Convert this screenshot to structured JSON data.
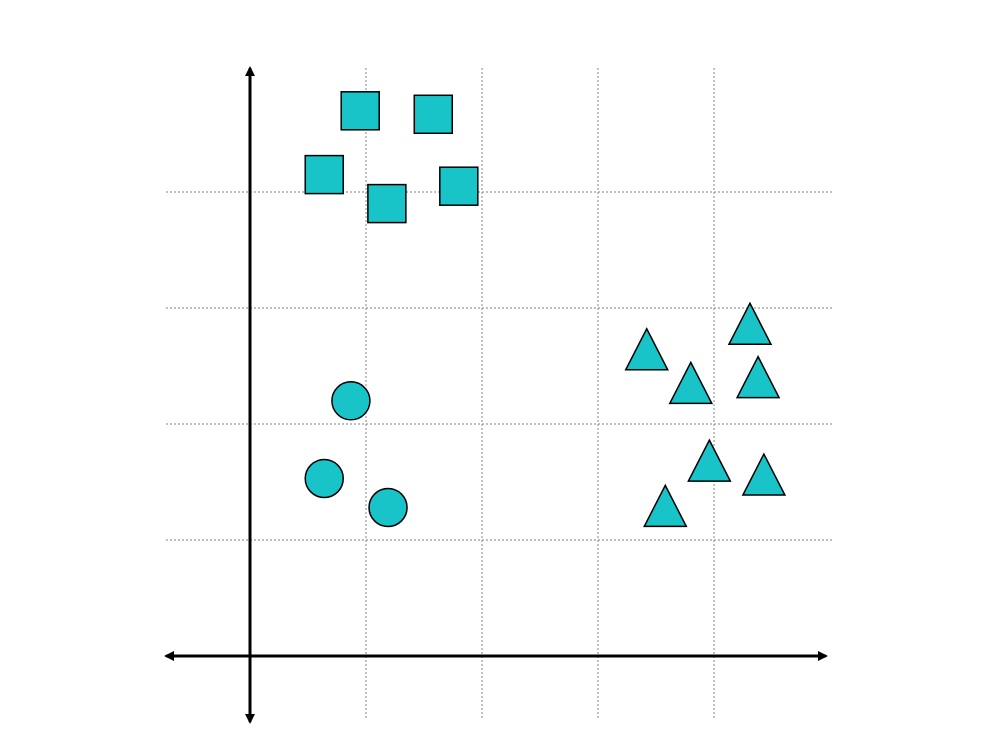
{
  "chart_data": {
    "type": "scatter",
    "title": "",
    "xlabel": "",
    "ylabel": "",
    "grid": true,
    "tick_labels": false,
    "legend": false,
    "xlim": [
      -0.72,
      5.05
    ],
    "ylim": [
      -0.52,
      5.05
    ],
    "fill_color": "#19C4C8",
    "stroke_color": "#000000",
    "grid_color": "#999999",
    "series": [
      {
        "marker": "square",
        "points": [
          {
            "x": 0.95,
            "y": 4.7
          },
          {
            "x": 1.58,
            "y": 4.67
          },
          {
            "x": 0.64,
            "y": 4.15
          },
          {
            "x": 1.18,
            "y": 3.9
          },
          {
            "x": 1.8,
            "y": 4.05
          }
        ]
      },
      {
        "marker": "circle",
        "points": [
          {
            "x": 0.87,
            "y": 2.2
          },
          {
            "x": 0.64,
            "y": 1.53
          },
          {
            "x": 1.19,
            "y": 1.28
          }
        ]
      },
      {
        "marker": "triangle",
        "points": [
          {
            "x": 4.31,
            "y": 2.86
          },
          {
            "x": 3.42,
            "y": 2.64
          },
          {
            "x": 3.8,
            "y": 2.35
          },
          {
            "x": 4.38,
            "y": 2.4
          },
          {
            "x": 3.96,
            "y": 1.68
          },
          {
            "x": 4.43,
            "y": 1.56
          },
          {
            "x": 3.58,
            "y": 1.29
          }
        ]
      }
    ]
  }
}
